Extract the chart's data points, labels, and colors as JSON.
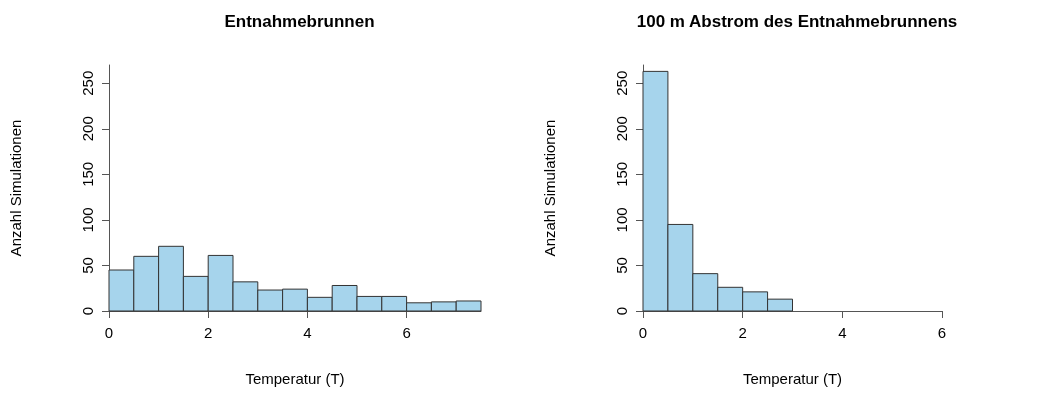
{
  "chart_data": [
    {
      "type": "histogram",
      "title": "Entnahmebrunnen",
      "xlabel": "Temperatur (T)",
      "ylabel": "Anzahl Simulationen",
      "color": "#a6d4ec",
      "bins": [
        0,
        0.5,
        1,
        1.5,
        2,
        2.5,
        3,
        3.5,
        4,
        4.5,
        5,
        5.5,
        6,
        6.5,
        7,
        7.5
      ],
      "values": [
        45,
        60,
        71,
        38,
        61,
        32,
        23,
        24,
        15,
        28,
        16,
        16,
        9,
        10,
        11
      ],
      "xlim": [
        0,
        7.5
      ],
      "xticks": [
        0,
        2,
        4,
        6
      ],
      "ylim": [
        0,
        270
      ],
      "yticks": [
        0,
        50,
        100,
        150,
        200,
        250
      ],
      "grid": false
    },
    {
      "type": "histogram",
      "title": "100 m Abstrom des Entnahmebrunnens",
      "xlabel": "Temperatur (T)",
      "ylabel": "Anzahl Simulationen",
      "color": "#a6d4ec",
      "bins": [
        0,
        0.5,
        1,
        1.5,
        2,
        2.5,
        3
      ],
      "values": [
        263,
        95,
        41,
        26,
        21,
        13
      ],
      "xlim": [
        0,
        6
      ],
      "xticks": [
        0,
        2,
        4,
        6
      ],
      "ylim": [
        0,
        270
      ],
      "yticks": [
        0,
        50,
        100,
        150,
        200,
        250
      ],
      "grid": false
    }
  ]
}
